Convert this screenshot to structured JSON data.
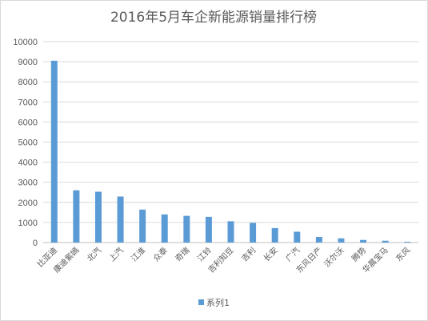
{
  "chart_data": {
    "type": "bar",
    "title": "2016年5月车企新能源销量排行榜",
    "xlabel": "",
    "ylabel": "",
    "ylim": [
      0,
      10000
    ],
    "yticks": [
      0,
      1000,
      2000,
      3000,
      4000,
      5000,
      6000,
      7000,
      8000,
      9000,
      10000
    ],
    "grid": true,
    "legend": "bottom",
    "categories": [
      "比亚迪",
      "康迪紫嫣",
      "北汽",
      "上汽",
      "江淮",
      "众泰",
      "奇瑞",
      "江铃",
      "吉利知豆",
      "吉利",
      "长安",
      "广汽",
      "东风日产",
      "沃尔沃",
      "腾势",
      "华晨宝马",
      "东风"
    ],
    "series": [
      {
        "name": "系列1",
        "color": "#5b9bd5",
        "values": [
          9050,
          2600,
          2530,
          2290,
          1640,
          1400,
          1330,
          1280,
          1060,
          980,
          720,
          540,
          280,
          210,
          130,
          90,
          40
        ]
      }
    ]
  }
}
